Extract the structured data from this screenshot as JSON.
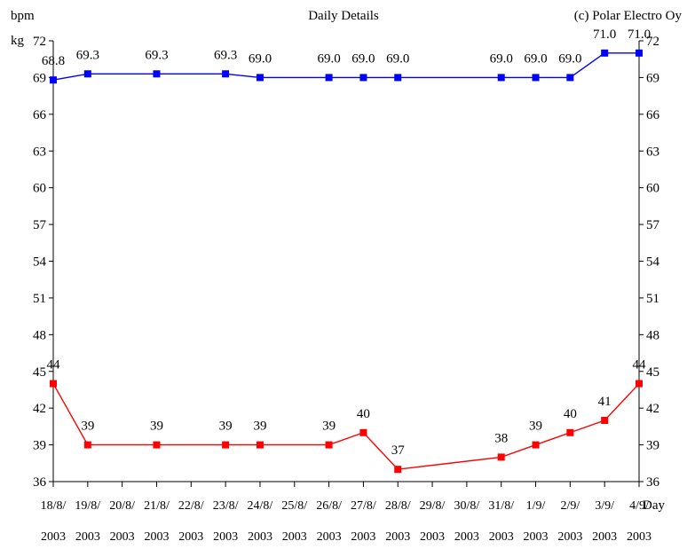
{
  "chart_data": {
    "type": "line",
    "title": "Daily Details",
    "copyright": "(c) Polar Electro Oy",
    "ylabel_primary": "bpm",
    "ylabel_secondary": "kg",
    "xlabel": "Day",
    "ylim": [
      36,
      72
    ],
    "yticks": [
      36,
      39,
      42,
      45,
      48,
      51,
      54,
      57,
      60,
      63,
      66,
      69,
      72
    ],
    "grid": false,
    "categories": [
      "18/8/2003",
      "19/8/2003",
      "20/8/2003",
      "21/8/2003",
      "22/8/2003",
      "23/8/2003",
      "24/8/2003",
      "25/8/2003",
      "26/8/2003",
      "27/8/2003",
      "28/8/2003",
      "29/8/2003",
      "30/8/2003",
      "31/8/2003",
      "1/9/2003",
      "2/9/2003",
      "3/9/2003",
      "4/9/2003"
    ],
    "category_lines": [
      [
        "18/8/",
        "19/8/",
        "20/8/",
        "21/8/",
        "22/8/",
        "23/8/",
        "24/8/",
        "25/8/",
        "26/8/",
        "27/8/",
        "28/8/",
        "29/8/",
        "30/8/",
        "31/8/",
        "1/9/",
        "2/9/",
        "3/9/",
        "4/9/"
      ],
      [
        "2003",
        "2003",
        "2003",
        "2003",
        "2003",
        "2003",
        "2003",
        "2003",
        "2003",
        "2003",
        "2003",
        "2003",
        "2003",
        "2003",
        "2003",
        "2003",
        "2003",
        "2003"
      ]
    ],
    "series": [
      {
        "color": "#0000ff",
        "points": [
          {
            "i": 0,
            "y": 68.8,
            "label": "68.8"
          },
          {
            "i": 1,
            "y": 69.3,
            "label": "69.3"
          },
          {
            "i": 3,
            "y": 69.3,
            "label": "69.3"
          },
          {
            "i": 5,
            "y": 69.3,
            "label": "69.3"
          },
          {
            "i": 6,
            "y": 69.0,
            "label": "69.0"
          },
          {
            "i": 8,
            "y": 69.0,
            "label": "69.0"
          },
          {
            "i": 9,
            "y": 69.0,
            "label": "69.0"
          },
          {
            "i": 10,
            "y": 69.0,
            "label": "69.0"
          },
          {
            "i": 13,
            "y": 69.0,
            "label": "69.0"
          },
          {
            "i": 14,
            "y": 69.0,
            "label": "69.0"
          },
          {
            "i": 15,
            "y": 69.0,
            "label": "69.0"
          },
          {
            "i": 16,
            "y": 71.0,
            "label": "71.0"
          },
          {
            "i": 17,
            "y": 71.0,
            "label": "71.0"
          }
        ]
      },
      {
        "color": "#ff0000",
        "points": [
          {
            "i": 0,
            "y": 44,
            "label": "44"
          },
          {
            "i": 1,
            "y": 39,
            "label": "39"
          },
          {
            "i": 3,
            "y": 39,
            "label": "39"
          },
          {
            "i": 5,
            "y": 39,
            "label": "39"
          },
          {
            "i": 6,
            "y": 39,
            "label": "39"
          },
          {
            "i": 8,
            "y": 39,
            "label": "39"
          },
          {
            "i": 9,
            "y": 40,
            "label": "40"
          },
          {
            "i": 10,
            "y": 37,
            "label": "37"
          },
          {
            "i": 13,
            "y": 38,
            "label": "38"
          },
          {
            "i": 14,
            "y": 39,
            "label": "39"
          },
          {
            "i": 15,
            "y": 40,
            "label": "40"
          },
          {
            "i": 16,
            "y": 41,
            "label": "41"
          },
          {
            "i": 17,
            "y": 44,
            "label": "44"
          }
        ]
      }
    ]
  }
}
